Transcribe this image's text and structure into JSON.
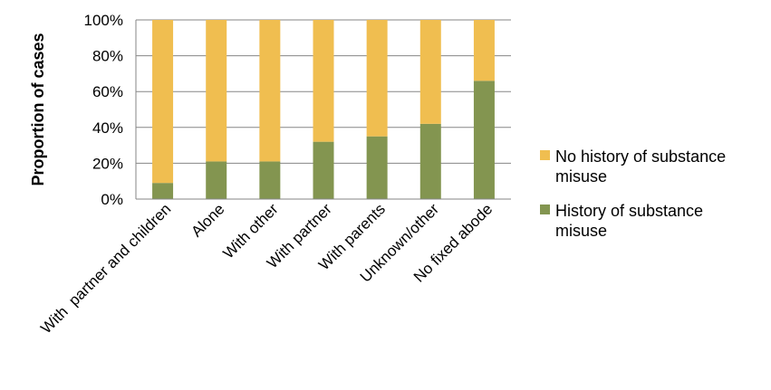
{
  "chart_data": {
    "type": "bar",
    "stacked": true,
    "percent_stacked": true,
    "title": "",
    "xlabel": "",
    "ylabel": "Proportion of cases",
    "ylim": [
      0,
      100
    ],
    "y_ticks": [
      "0%",
      "20%",
      "40%",
      "60%",
      "80%",
      "100%"
    ],
    "grid": true,
    "legend_position": "right",
    "categories": [
      "With  partner and children",
      "Alone",
      "With other",
      "With partner",
      "With parents",
      "Unknown/other",
      "No fixed abode"
    ],
    "series": [
      {
        "name": "History of substance misuse",
        "color": "#839550",
        "values": [
          9,
          21,
          21,
          32,
          35,
          42,
          66
        ]
      },
      {
        "name": "No history of substance misuse",
        "color": "#F0BE50",
        "values": [
          91,
          79,
          79,
          68,
          65,
          58,
          34
        ]
      }
    ],
    "legend": [
      {
        "lines": [
          "No history of substance",
          "misuse"
        ],
        "color": "#F0BE50"
      },
      {
        "lines": [
          "History of substance",
          "misuse"
        ],
        "color": "#839550"
      }
    ]
  }
}
